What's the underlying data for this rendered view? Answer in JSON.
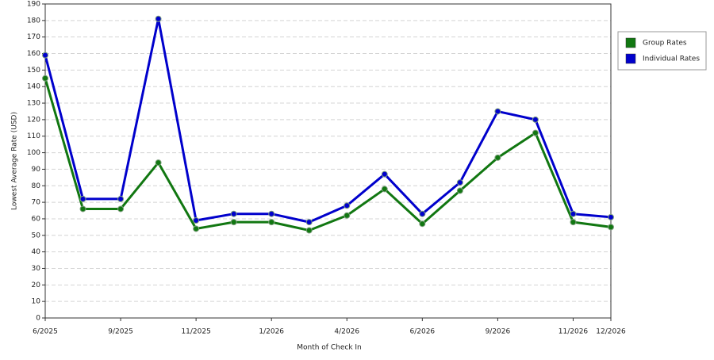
{
  "chart_data": {
    "type": "line",
    "x_label": "Month of Check In",
    "y_label": "Lowest Average Rate (USD)",
    "categories": [
      "6/2025",
      null,
      "9/2025",
      null,
      "11/2025",
      null,
      "1/2026",
      null,
      "4/2026",
      null,
      "6/2026",
      null,
      "9/2026",
      null,
      "11/2026",
      "12/2026"
    ],
    "series": [
      {
        "name": "Group Rates",
        "color": "#117711",
        "values": [
          145,
          66,
          66,
          94,
          54,
          58,
          58,
          53,
          62,
          78,
          57,
          77,
          97,
          112,
          58,
          55
        ]
      },
      {
        "name": "Individual Rates",
        "color": "#0000cc",
        "values": [
          159,
          72,
          72,
          181,
          59,
          63,
          63,
          58,
          68,
          87,
          63,
          82,
          125,
          120,
          63,
          61
        ]
      }
    ],
    "ylim": [
      0,
      190
    ],
    "yticks": [
      0,
      10,
      20,
      30,
      40,
      50,
      60,
      70,
      80,
      90,
      100,
      110,
      120,
      130,
      140,
      150,
      160,
      170,
      180,
      190
    ],
    "grid": true,
    "legend": "right"
  }
}
